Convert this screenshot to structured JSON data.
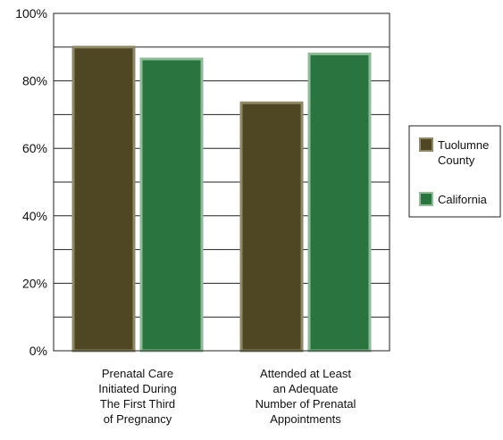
{
  "chart_data": {
    "type": "bar",
    "title": "",
    "xlabel": "",
    "ylabel": "",
    "ylim": [
      0,
      100
    ],
    "ytick_values": [
      0,
      20,
      40,
      60,
      80,
      100
    ],
    "yticks": [
      "0%",
      "20%",
      "40%",
      "60%",
      "80%",
      "100%"
    ],
    "grid": true,
    "legend_position": "right",
    "categories": [
      [
        "Prenatal Care",
        "Initiated During",
        "The First Third",
        "of Pregnancy"
      ],
      [
        "Attended at Least",
        "an Adequate",
        "Number of Prenatal",
        "Appointments"
      ]
    ],
    "series": [
      {
        "name": [
          "Tuolumne",
          "County"
        ],
        "color": "#4f4623",
        "border": "#8f896a",
        "values": [
          90,
          73.5
        ]
      },
      {
        "name": [
          "California"
        ],
        "color": "#2a7440",
        "border": "#8fbb98",
        "values": [
          86.5,
          88
        ]
      }
    ]
  }
}
